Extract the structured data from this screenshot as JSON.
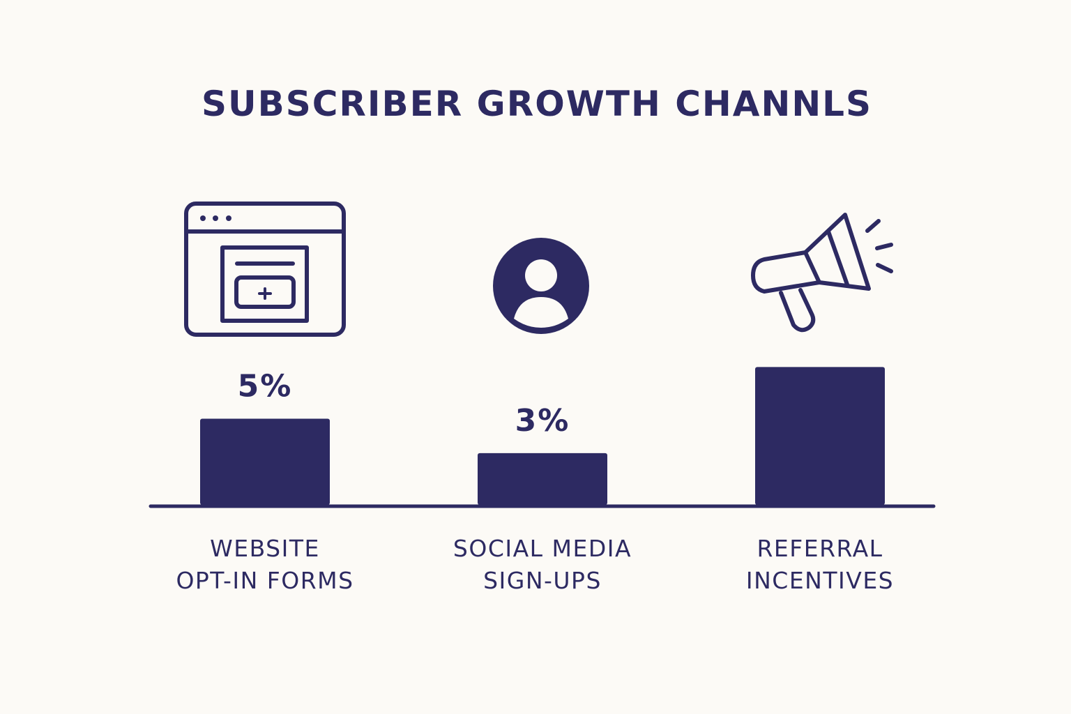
{
  "chart_data": {
    "type": "bar",
    "title": "SUBSCRIBER GROWTH CHANNLS",
    "categories": [
      "WEBSITE\nOPT-IN FORMS",
      "SOCIAL MEDIA\nSIGN-UPS",
      "REFERRAL\nINCENTIVES"
    ],
    "values": [
      5,
      3,
      8
    ],
    "value_labels": [
      "5%",
      "3%",
      null
    ],
    "color": "#2d2a62",
    "ylim": [
      0,
      10
    ]
  }
}
